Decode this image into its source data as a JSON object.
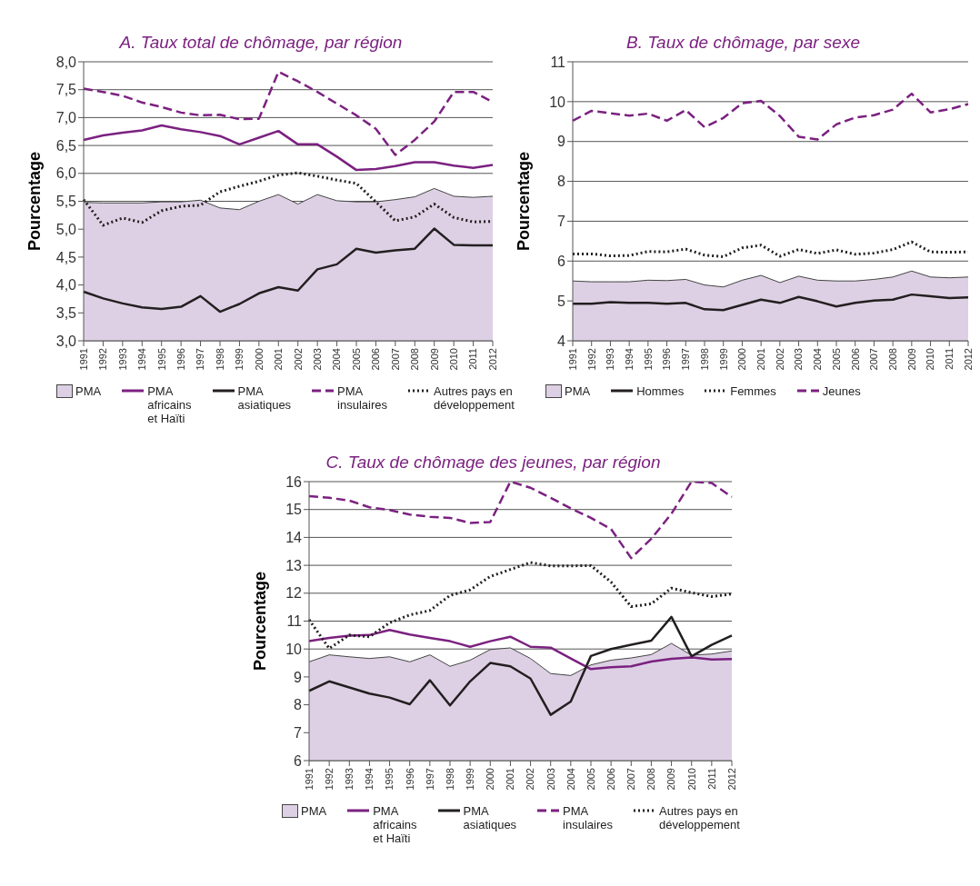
{
  "chart_data": [
    {
      "type": "line",
      "title": "A.  Taux total de chômage, par région",
      "ylabel": "Pourcentage",
      "categories": [
        "1991",
        "1992",
        "1993",
        "1994",
        "1995",
        "1996",
        "1997",
        "1998",
        "1999",
        "2000",
        "2001",
        "2002",
        "2003",
        "2004",
        "2005",
        "2006",
        "2007",
        "2008",
        "2009",
        "2010",
        "2011",
        "2012"
      ],
      "ylim": [
        3,
        8
      ],
      "yticks": [
        {
          "value": 3,
          "label": "3,0"
        },
        {
          "value": 3.5,
          "label": "3,5"
        },
        {
          "value": 4,
          "label": "4,0"
        },
        {
          "value": 4.5,
          "label": "4,5"
        },
        {
          "value": 5,
          "label": "5,0"
        },
        {
          "value": 5.5,
          "label": "5,5"
        },
        {
          "value": 6,
          "label": "6,0"
        },
        {
          "value": 6.5,
          "label": "6,5"
        },
        {
          "value": 7,
          "label": "7,0"
        },
        {
          "value": 7.5,
          "label": "7,5"
        },
        {
          "value": 8,
          "label": "8,0"
        }
      ],
      "grid": "y",
      "legend": "bottom",
      "series": [
        {
          "name": "PMA",
          "type": "area",
          "color": "#ddd0e4",
          "values": [
            5.48,
            5.47,
            5.47,
            5.47,
            5.49,
            5.49,
            5.52,
            5.38,
            5.35,
            5.5,
            5.62,
            5.45,
            5.62,
            5.51,
            5.49,
            5.49,
            5.53,
            5.58,
            5.73,
            5.59,
            5.57,
            5.59
          ]
        },
        {
          "name": "PMA africains et Haïti",
          "type": "line",
          "color": "#7b2180",
          "line_style": "solid",
          "values": [
            6.6,
            6.68,
            6.73,
            6.77,
            6.86,
            6.79,
            6.74,
            6.67,
            6.52,
            6.64,
            6.76,
            6.52,
            6.52,
            6.3,
            6.06,
            6.08,
            6.13,
            6.2,
            6.2,
            6.14,
            6.1,
            6.15
          ]
        },
        {
          "name": "PMA asiatiques",
          "type": "line",
          "color": "#231f20",
          "line_style": "solid",
          "values": [
            3.88,
            3.76,
            3.67,
            3.6,
            3.57,
            3.61,
            3.8,
            3.52,
            3.66,
            3.85,
            3.96,
            3.9,
            4.28,
            4.37,
            4.65,
            4.58,
            4.62,
            4.65,
            5.01,
            4.72,
            4.71,
            4.71
          ]
        },
        {
          "name": "PMA insulaires",
          "type": "line",
          "color": "#7b2180",
          "line_style": "dashed",
          "values": [
            7.52,
            7.46,
            7.39,
            7.27,
            7.19,
            7.09,
            7.04,
            7.05,
            6.97,
            6.98,
            7.82,
            7.65,
            7.46,
            7.25,
            7.04,
            6.8,
            6.33,
            6.6,
            6.93,
            7.46,
            7.46,
            7.28
          ]
        },
        {
          "name": "Autres pays en développement",
          "type": "line",
          "color": "#231f20",
          "line_style": "dotted",
          "values": [
            5.53,
            5.07,
            5.2,
            5.12,
            5.33,
            5.41,
            5.43,
            5.67,
            5.77,
            5.86,
            5.97,
            6.01,
            5.95,
            5.88,
            5.82,
            5.49,
            5.15,
            5.22,
            5.45,
            5.21,
            5.13,
            5.14
          ]
        }
      ]
    },
    {
      "type": "line",
      "title": "B.  Taux de chômage, par sexe",
      "ylabel": "Pourcentage",
      "categories": [
        "1991",
        "1992",
        "1993",
        "1994",
        "1995",
        "1996",
        "1997",
        "1998",
        "1999",
        "2000",
        "2001",
        "2002",
        "2003",
        "2004",
        "2005",
        "2006",
        "2007",
        "2008",
        "2009",
        "2010",
        "2011",
        "2012"
      ],
      "ylim": [
        4,
        11
      ],
      "yticks": [
        4,
        5,
        6,
        7,
        8,
        9,
        10,
        11
      ],
      "grid": "y",
      "legend": "bottom",
      "series": [
        {
          "name": "PMA",
          "type": "area",
          "color": "#ddd0e4",
          "values": [
            5.5,
            5.48,
            5.48,
            5.48,
            5.52,
            5.51,
            5.54,
            5.4,
            5.35,
            5.52,
            5.64,
            5.46,
            5.62,
            5.52,
            5.5,
            5.5,
            5.54,
            5.6,
            5.75,
            5.6,
            5.58,
            5.6
          ]
        },
        {
          "name": "Hommes",
          "type": "line",
          "color": "#231f20",
          "line_style": "solid",
          "values": [
            4.93,
            4.93,
            4.97,
            4.95,
            4.95,
            4.93,
            4.95,
            4.79,
            4.77,
            4.9,
            5.03,
            4.95,
            5.1,
            4.99,
            4.86,
            4.95,
            5.01,
            5.03,
            5.16,
            5.12,
            5.07,
            5.09
          ]
        },
        {
          "name": "Femmes",
          "type": "line",
          "color": "#231f20",
          "line_style": "dotted",
          "values": [
            6.18,
            6.18,
            6.13,
            6.14,
            6.24,
            6.23,
            6.3,
            6.15,
            6.11,
            6.33,
            6.4,
            6.12,
            6.29,
            6.19,
            6.28,
            6.17,
            6.2,
            6.29,
            6.48,
            6.23,
            6.22,
            6.23
          ]
        },
        {
          "name": "Jeunes",
          "type": "line",
          "color": "#7b2180",
          "line_style": "dashed",
          "values": [
            9.52,
            9.77,
            9.71,
            9.65,
            9.7,
            9.52,
            9.79,
            9.36,
            9.59,
            9.96,
            10.02,
            9.64,
            9.12,
            9.05,
            9.43,
            9.6,
            9.66,
            9.8,
            10.2,
            9.73,
            9.81,
            9.94
          ]
        }
      ]
    },
    {
      "type": "line",
      "title": "C.  Taux de chômage des jeunes, par région",
      "ylabel": "Pourcentage",
      "categories": [
        "1991",
        "1992",
        "1993",
        "1994",
        "1995",
        "1996",
        "1997",
        "1998",
        "1999",
        "2000",
        "2001",
        "2002",
        "2003",
        "2004",
        "2005",
        "2006",
        "2007",
        "2008",
        "2009",
        "2010",
        "2011",
        "2012"
      ],
      "ylim": [
        6,
        16
      ],
      "yticks": [
        6,
        7,
        8,
        9,
        10,
        11,
        12,
        13,
        14,
        15,
        16
      ],
      "grid": "y",
      "legend": "bottom",
      "series": [
        {
          "name": "PMA",
          "type": "area",
          "color": "#ddd0e4",
          "values": [
            9.54,
            9.79,
            9.72,
            9.66,
            9.72,
            9.54,
            9.79,
            9.38,
            9.6,
            9.98,
            10.04,
            9.66,
            9.12,
            9.05,
            9.43,
            9.6,
            9.68,
            9.8,
            10.2,
            9.78,
            9.82,
            9.93
          ]
        },
        {
          "name": "PMA africains et Haïti",
          "type": "line",
          "color": "#7b2180",
          "line_style": "solid",
          "values": [
            10.28,
            10.4,
            10.48,
            10.5,
            10.68,
            10.52,
            10.4,
            10.28,
            10.08,
            10.28,
            10.44,
            10.08,
            10.05,
            9.66,
            9.28,
            9.35,
            9.38,
            9.55,
            9.65,
            9.7,
            9.62,
            9.64
          ]
        },
        {
          "name": "PMA asiatiques",
          "type": "line",
          "color": "#231f20",
          "line_style": "solid",
          "values": [
            8.5,
            8.84,
            8.62,
            8.4,
            8.26,
            8.02,
            8.88,
            7.98,
            8.84,
            9.5,
            9.38,
            8.94,
            7.64,
            8.12,
            9.75,
            10,
            10.15,
            10.3,
            11.15,
            9.74,
            10.15,
            10.48
          ]
        },
        {
          "name": "PMA insulaires",
          "type": "line",
          "color": "#7b2180",
          "line_style": "dashed",
          "values": [
            15.48,
            15.42,
            15.32,
            15.08,
            14.98,
            14.82,
            14.74,
            14.7,
            14.52,
            14.55,
            16,
            15.78,
            15.42,
            15.04,
            14.7,
            14.3,
            13.26,
            13.95,
            14.85,
            16,
            15.95,
            15.45
          ]
        },
        {
          "name": "Autres pays en développement",
          "type": "line",
          "color": "#231f20",
          "line_style": "dotted",
          "values": [
            11.05,
            10.02,
            10.5,
            10.44,
            10.94,
            11.22,
            11.38,
            11.92,
            12.12,
            12.6,
            12.85,
            13.1,
            12.98,
            12.98,
            12.99,
            12.4,
            11.52,
            11.62,
            12.18,
            12.02,
            11.88,
            11.97
          ]
        }
      ]
    }
  ]
}
